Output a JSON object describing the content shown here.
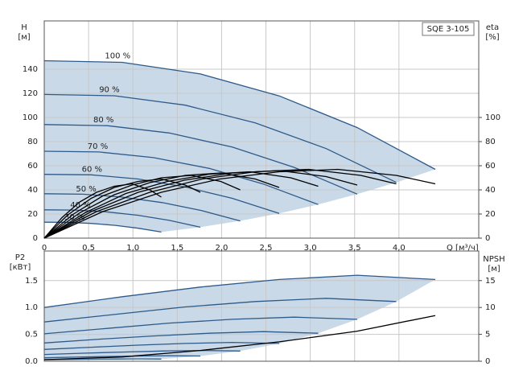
{
  "chart_data": [
    {
      "type": "line",
      "title": "SQE 3-105",
      "ylabel": "H",
      "yunit": "[м]",
      "y2label": "eta",
      "y2unit": "[%]",
      "xlabel": "Q [м³/ч]",
      "xlim": [
        0,
        4.9
      ],
      "xticks": [
        0,
        {
          "value": 0.5,
          "label": "0,5"
        },
        {
          "value": 1.0,
          "label": "1,0"
        },
        {
          "value": 1.5,
          "label": "1,5"
        },
        {
          "value": 2.0,
          "label": "2,0"
        },
        {
          "value": 2.5,
          "label": "2,5"
        },
        {
          "value": 3.0,
          "label": "3,0"
        },
        {
          "value": 3.5,
          "label": "3,5"
        },
        {
          "value": 4.0,
          "label": "4,0"
        }
      ],
      "ylim": [
        0,
        180
      ],
      "yticks": [
        0,
        20,
        40,
        60,
        80,
        100,
        120,
        140
      ],
      "y2lim": [
        0,
        180
      ],
      "y2ticks": [
        0,
        20,
        40,
        60,
        80,
        100
      ],
      "grid": true,
      "area_color": "#c9d9e8",
      "series": [
        {
          "name": "100 %",
          "color": "#2e5a8a",
          "x": [
            0,
            0.88,
            1.76,
            2.65,
            3.53,
            4.41
          ],
          "values": [
            147,
            145.7,
            136.1,
            117.9,
            91.6,
            57
          ]
        },
        {
          "name": "90 %",
          "color": "#2e5a8a",
          "x": [
            0,
            0.79,
            1.59,
            2.38,
            3.18,
            3.97
          ],
          "values": [
            119.1,
            118.0,
            110.2,
            95.5,
            74.2,
            46.2
          ]
        },
        {
          "name": "80 %",
          "color": "#2e5a8a",
          "x": [
            0,
            0.71,
            1.41,
            2.12,
            2.82,
            3.53
          ],
          "values": [
            94.1,
            93.2,
            87.1,
            75.5,
            58.6,
            36.5
          ]
        },
        {
          "name": "70 %",
          "color": "#2e5a8a",
          "x": [
            0,
            0.62,
            1.23,
            1.86,
            2.47,
            3.09
          ],
          "values": [
            72.0,
            71.4,
            66.7,
            57.8,
            44.9,
            27.9
          ]
        },
        {
          "name": "60 %",
          "color": "#2e5a8a",
          "x": [
            0,
            0.53,
            1.06,
            1.59,
            2.12,
            2.65
          ],
          "values": [
            52.9,
            52.5,
            49.0,
            42.4,
            33.0,
            20.5
          ]
        },
        {
          "name": "50 %",
          "color": "#2e5a8a",
          "x": [
            0,
            0.44,
            0.88,
            1.33,
            1.77,
            2.21
          ],
          "values": [
            36.8,
            36.4,
            34.0,
            29.5,
            22.9,
            14.3
          ]
        },
        {
          "name": "40 %",
          "color": "#2e5a8a",
          "x": [
            0,
            0.35,
            0.7,
            1.06,
            1.41,
            1.76
          ],
          "values": [
            23.5,
            23.3,
            21.8,
            18.9,
            14.7,
            9.1
          ]
        },
        {
          "name": "30 %",
          "color": "#2e5a8a",
          "x": [
            0,
            0.26,
            0.53,
            0.8,
            1.06,
            1.32
          ],
          "values": [
            13.2,
            13.1,
            12.2,
            10.6,
            8.2,
            5.1
          ]
        },
        {
          "color": "#000000",
          "axis": "y2",
          "x": [
            0,
            0.66,
            1.32,
            1.98,
            2.65,
            3.31,
            3.97,
            4.41
          ],
          "values": [
            0,
            22,
            38,
            49,
            55,
            57,
            52,
            45
          ]
        },
        {
          "color": "#000000",
          "axis": "y2",
          "x": [
            0,
            0.59,
            1.19,
            1.78,
            2.38,
            2.98,
            3.57,
            3.97
          ],
          "values": [
            0,
            22,
            38,
            49,
            55,
            57,
            52,
            45
          ]
        },
        {
          "color": "#000000",
          "axis": "y2",
          "x": [
            0,
            0.53,
            1.06,
            1.58,
            2.12,
            2.65,
            3.18,
            3.53
          ],
          "values": [
            0,
            22,
            38,
            48,
            54,
            56,
            51,
            44
          ]
        },
        {
          "color": "#000000",
          "axis": "y2",
          "x": [
            0,
            0.46,
            0.92,
            1.39,
            1.86,
            2.32,
            2.78,
            3.09
          ],
          "values": [
            0,
            21,
            37,
            47,
            53,
            55,
            50,
            43
          ]
        },
        {
          "color": "#000000",
          "axis": "y2",
          "x": [
            0,
            0.4,
            0.79,
            1.19,
            1.59,
            1.99,
            2.38,
            2.65
          ],
          "values": [
            0,
            21,
            36,
            46,
            52,
            54,
            49,
            42
          ]
        },
        {
          "color": "#000000",
          "axis": "y2",
          "x": [
            0,
            0.33,
            0.66,
            0.99,
            1.32,
            1.66,
            1.99,
            2.21
          ],
          "values": [
            0,
            20,
            35,
            44,
            50,
            52,
            47,
            40
          ]
        },
        {
          "color": "#000000",
          "axis": "y2",
          "x": [
            0,
            0.26,
            0.53,
            0.79,
            1.06,
            1.32,
            1.59,
            1.76
          ],
          "values": [
            0,
            19,
            33,
            42,
            47,
            49,
            44,
            38
          ]
        },
        {
          "color": "#000000",
          "axis": "y2",
          "x": [
            0,
            0.2,
            0.4,
            0.59,
            0.79,
            0.99,
            1.19,
            1.32
          ],
          "values": [
            0,
            17,
            30,
            38,
            43,
            45,
            40,
            34
          ]
        }
      ]
    },
    {
      "type": "line",
      "ylabel": "P2",
      "yunit": "[кВт]",
      "y2label": "NPSH",
      "y2unit": "[м]",
      "xlim": [
        0,
        4.9
      ],
      "ylim": [
        0,
        2.05
      ],
      "yticks": [
        {
          "value": 0,
          "label": "0.0"
        },
        {
          "value": 0.5,
          "label": "0.5"
        },
        {
          "value": 1.0,
          "label": "1.0"
        },
        {
          "value": 1.5,
          "label": "1.5"
        }
      ],
      "y2lim": [
        0,
        20.5
      ],
      "y2ticks": [
        0,
        5,
        10,
        15
      ],
      "grid": true,
      "area_color": "#c9d9e8",
      "series": [
        {
          "color": "#2e5a8a",
          "x": [
            0,
            0.88,
            1.76,
            2.65,
            3.53,
            4.41
          ],
          "values": [
            1.0,
            1.2,
            1.38,
            1.52,
            1.6,
            1.52
          ]
        },
        {
          "color": "#2e5a8a",
          "x": [
            0,
            0.79,
            1.59,
            2.38,
            3.18,
            3.97
          ],
          "values": [
            0.73,
            0.87,
            1.01,
            1.11,
            1.17,
            1.11
          ]
        },
        {
          "color": "#2e5a8a",
          "x": [
            0,
            0.71,
            1.41,
            2.12,
            2.82,
            3.53
          ],
          "values": [
            0.51,
            0.61,
            0.71,
            0.78,
            0.82,
            0.78
          ]
        },
        {
          "color": "#2e5a8a",
          "x": [
            0,
            0.62,
            1.23,
            1.86,
            2.47,
            3.09
          ],
          "values": [
            0.34,
            0.41,
            0.47,
            0.52,
            0.55,
            0.52
          ]
        },
        {
          "color": "#2e5a8a",
          "x": [
            0,
            0.53,
            1.06,
            1.59,
            2.12,
            2.65
          ],
          "values": [
            0.22,
            0.26,
            0.3,
            0.33,
            0.35,
            0.33
          ]
        },
        {
          "color": "#2e5a8a",
          "x": [
            0,
            0.44,
            0.88,
            1.33,
            1.77,
            2.21
          ],
          "values": [
            0.125,
            0.15,
            0.17,
            0.19,
            0.2,
            0.19
          ]
        },
        {
          "color": "#2e5a8a",
          "x": [
            0,
            0.35,
            0.7,
            1.06,
            1.41,
            1.76
          ],
          "values": [
            0.064,
            0.077,
            0.088,
            0.097,
            0.102,
            0.097
          ]
        },
        {
          "color": "#2e5a8a",
          "x": [
            0,
            0.26,
            0.53,
            0.8,
            1.06,
            1.32
          ],
          "values": [
            0.027,
            0.032,
            0.037,
            0.041,
            0.043,
            0.041
          ]
        },
        {
          "color": "#000000",
          "axis": "y2",
          "x": [
            0,
            0.88,
            1.76,
            2.65,
            3.53,
            4.41
          ],
          "values": [
            0.3,
            0.8,
            2.0,
            3.6,
            5.6,
            8.5
          ]
        }
      ]
    }
  ]
}
